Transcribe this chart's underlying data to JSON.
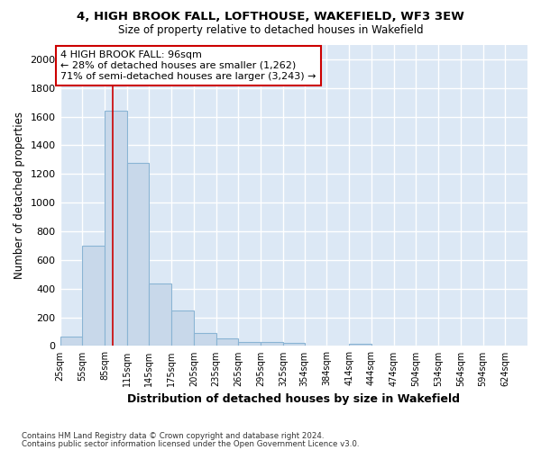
{
  "title": "4, HIGH BROOK FALL, LOFTHOUSE, WAKEFIELD, WF3 3EW",
  "subtitle": "Size of property relative to detached houses in Wakefield",
  "xlabel": "Distribution of detached houses by size in Wakefield",
  "ylabel": "Number of detached properties",
  "footnote1": "Contains HM Land Registry data © Crown copyright and database right 2024.",
  "footnote2": "Contains public sector information licensed under the Open Government Licence v3.0.",
  "property_size": 96,
  "annotation_text": "4 HIGH BROOK FALL: 96sqm\n← 28% of detached houses are smaller (1,262)\n71% of semi-detached houses are larger (3,243) →",
  "bin_edges": [
    25,
    55,
    85,
    115,
    145,
    175,
    205,
    235,
    265,
    295,
    325,
    354,
    384,
    414,
    444,
    474,
    504,
    534,
    564,
    594,
    624,
    654
  ],
  "counts": [
    65,
    700,
    1640,
    1280,
    435,
    250,
    90,
    50,
    30,
    25,
    20,
    0,
    0,
    18,
    0,
    0,
    0,
    0,
    0,
    0,
    0
  ],
  "bar_color": "#c8d8ea",
  "bar_edge_color": "#8ab4d4",
  "bar_linewidth": 0.8,
  "vline_color": "#cc0000",
  "vline_x": 96,
  "annotation_box_edgecolor": "#cc0000",
  "annotation_text_fontsize": 8,
  "background_color": "#dce8f5",
  "grid_color": "#ffffff",
  "ylim": [
    0,
    2100
  ],
  "yticks": [
    0,
    200,
    400,
    600,
    800,
    1000,
    1200,
    1400,
    1600,
    1800,
    2000
  ],
  "tick_labels": [
    "25sqm",
    "55sqm",
    "85sqm",
    "115sqm",
    "145sqm",
    "175sqm",
    "205sqm",
    "235sqm",
    "265sqm",
    "295sqm",
    "325sqm",
    "354sqm",
    "384sqm",
    "414sqm",
    "444sqm",
    "474sqm",
    "504sqm",
    "534sqm",
    "564sqm",
    "594sqm",
    "624sqm"
  ]
}
